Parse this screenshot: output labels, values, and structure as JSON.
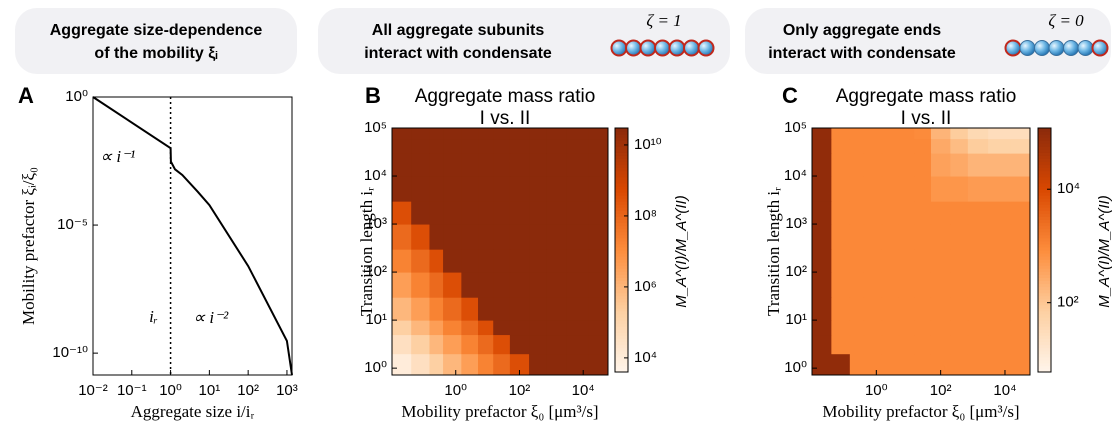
{
  "headers": [
    {
      "lines": [
        "Aggregate size-dependence",
        "of the mobility ξᵢ"
      ]
    },
    {
      "lines": [
        "All aggregate subunits",
        "interact with condensate"
      ],
      "formula": "ζ = 1"
    },
    {
      "lines": [
        "Only aggregate ends",
        "interact with condensate"
      ],
      "formula": "ζ = 0"
    }
  ],
  "chart_data": [
    {
      "type": "line",
      "label": "A",
      "xlabel": "Aggregate size i/iᵣ",
      "ylabel": "Mobility prefactor ξᵢ/ξ₀",
      "x": [
        0.01,
        1,
        1.02,
        1.3,
        2,
        5,
        10,
        100,
        1000,
        1350
      ],
      "y": [
        1,
        0.01,
        0.003,
        0.0015,
        0.0009,
        0.0002,
        6e-05,
        2.5e-07,
        3e-10,
        1.4e-11
      ],
      "color": "#000000",
      "log_x": true,
      "log_y": true,
      "xlim": [
        0.01,
        1350
      ],
      "ylim": [
        1.4e-11,
        1
      ],
      "xticks": [
        {
          "value": 0.01,
          "label": "10⁻²"
        },
        {
          "value": 0.1,
          "label": "10⁻¹"
        },
        {
          "value": 1,
          "label": "10⁰"
        },
        {
          "value": 10,
          "label": "10¹"
        },
        {
          "value": 100,
          "label": "10²"
        },
        {
          "value": 1000,
          "label": "10³"
        }
      ],
      "yticks": [
        {
          "value": 1,
          "label": "10⁰"
        },
        {
          "value": 1e-05,
          "label": "10⁻⁵"
        },
        {
          "value": 1e-10,
          "label": "10⁻¹⁰"
        }
      ],
      "vline": 1,
      "annotations": [
        "∝ i⁻¹",
        "∝ i⁻²",
        "iᵣ"
      ]
    },
    {
      "type": "heatmap",
      "label": "B",
      "title": "Aggregate mass ratio",
      "subtitle": "I vs. II",
      "xlabel": "Mobility prefactor ξ₀ [μm³/s]",
      "ylabel": "Transition length iᵣ",
      "x_bins": [
        0.01,
        0.04,
        0.15,
        0.4,
        1.5,
        5,
        15,
        50,
        200,
        700,
        3000,
        15000,
        60000
      ],
      "y_bins": [
        0.72,
        2,
        5,
        10,
        30,
        100,
        300,
        1000,
        3000,
        10000,
        30000,
        60000,
        100000
      ],
      "values": [
        [
          10000.0,
          40000.0,
          200000.0,
          900000.0,
          4000000.0,
          20000000.0,
          80000000.0,
          400000000.0,
          50000000000.0,
          50000000000.0,
          50000000000.0,
          50000000000.0
        ],
        [
          40000.0,
          200000.0,
          900000.0,
          4000000.0,
          20000000.0,
          80000000.0,
          400000000.0,
          50000000000.0,
          50000000000.0,
          50000000000.0,
          50000000000.0,
          50000000000.0
        ],
        [
          200000.0,
          900000.0,
          4000000.0,
          20000000.0,
          80000000.0,
          400000000.0,
          50000000000.0,
          50000000000.0,
          50000000000.0,
          50000000000.0,
          50000000000.0,
          50000000000.0
        ],
        [
          900000.0,
          4000000.0,
          20000000.0,
          80000000.0,
          400000000.0,
          50000000000.0,
          50000000000.0,
          50000000000.0,
          50000000000.0,
          50000000000.0,
          50000000000.0,
          50000000000.0
        ],
        [
          4000000.0,
          20000000.0,
          80000000.0,
          400000000.0,
          50000000000.0,
          50000000000.0,
          50000000000.0,
          50000000000.0,
          50000000000.0,
          50000000000.0,
          50000000000.0,
          50000000000.0
        ],
        [
          20000000.0,
          80000000.0,
          400000000.0,
          50000000000.0,
          50000000000.0,
          50000000000.0,
          50000000000.0,
          50000000000.0,
          50000000000.0,
          50000000000.0,
          50000000000.0,
          50000000000.0
        ],
        [
          80000000.0,
          400000000.0,
          50000000000.0,
          50000000000.0,
          50000000000.0,
          50000000000.0,
          50000000000.0,
          50000000000.0,
          50000000000.0,
          50000000000.0,
          50000000000.0,
          50000000000.0
        ],
        [
          400000000.0,
          50000000000.0,
          50000000000.0,
          50000000000.0,
          50000000000.0,
          50000000000.0,
          50000000000.0,
          50000000000.0,
          50000000000.0,
          50000000000.0,
          50000000000.0,
          50000000000.0
        ],
        [
          50000000000.0,
          50000000000.0,
          50000000000.0,
          50000000000.0,
          50000000000.0,
          50000000000.0,
          50000000000.0,
          50000000000.0,
          50000000000.0,
          50000000000.0,
          50000000000.0,
          50000000000.0
        ],
        [
          50000000000.0,
          50000000000.0,
          50000000000.0,
          50000000000.0,
          50000000000.0,
          50000000000.0,
          50000000000.0,
          50000000000.0,
          50000000000.0,
          50000000000.0,
          50000000000.0,
          50000000000.0
        ],
        [
          50000000000.0,
          50000000000.0,
          50000000000.0,
          50000000000.0,
          50000000000.0,
          50000000000.0,
          50000000000.0,
          50000000000.0,
          50000000000.0,
          50000000000.0,
          50000000000.0,
          50000000000.0
        ],
        [
          50000000000.0,
          50000000000.0,
          50000000000.0,
          50000000000.0,
          50000000000.0,
          50000000000.0,
          50000000000.0,
          50000000000.0,
          50000000000.0,
          50000000000.0,
          50000000000.0,
          50000000000.0
        ]
      ],
      "xlim": [
        0.01,
        60000
      ],
      "ylim": [
        0.72,
        100000
      ],
      "xticks": [
        {
          "value": 1,
          "label": "10⁰"
        },
        {
          "value": 100,
          "label": "10²"
        },
        {
          "value": 10000,
          "label": "10⁴"
        }
      ],
      "yticks": [
        {
          "value": 1,
          "label": "10⁰"
        },
        {
          "value": 10,
          "label": "10¹"
        },
        {
          "value": 100,
          "label": "10²"
        },
        {
          "value": 1000,
          "label": "10³"
        },
        {
          "value": 10000,
          "label": "10⁴"
        },
        {
          "value": 100000,
          "label": "10⁵"
        }
      ],
      "colorbar_label": "M_A^(I)/M_A^(II)",
      "clim": [
        4000,
        30000000000
      ],
      "cticks": [
        {
          "value": 10000,
          "label": "10⁴"
        },
        {
          "value": 1000000,
          "label": "10⁶"
        },
        {
          "value": 100000000,
          "label": "10⁸"
        },
        {
          "value": 10000000000,
          "label": "10¹⁰"
        }
      ],
      "colormap": [
        "#fff5eb",
        "#fdd0a2",
        "#fd8d3c",
        "#d94801",
        "#8b2a0b"
      ]
    },
    {
      "type": "heatmap",
      "label": "C",
      "title": "Aggregate mass ratio",
      "subtitle": "I vs. II",
      "xlabel": "Mobility prefactor ξ₀ [μm³/s]",
      "ylabel": "Transition length iᵣ",
      "x_bins": [
        0.01,
        0.04,
        0.15,
        0.4,
        1.5,
        5,
        15,
        50,
        200,
        700,
        3000,
        15000,
        60000
      ],
      "y_bins": [
        0.72,
        2,
        5,
        10,
        30,
        100,
        300,
        1000,
        3000,
        10000,
        30000,
        60000,
        100000
      ],
      "values": [
        [
          100000.0,
          100000.0,
          1000,
          1000,
          1000,
          1000,
          1000,
          1000,
          1000,
          1000,
          1000,
          1000
        ],
        [
          100000.0,
          1000,
          1000,
          1000,
          1000,
          1000,
          1000,
          1000,
          1000,
          1000,
          1000,
          1000
        ],
        [
          100000.0,
          1000,
          1000,
          1000,
          1000,
          1000,
          1000,
          1000,
          1000,
          1000,
          1000,
          1000
        ],
        [
          100000.0,
          1000,
          1000,
          1000,
          1000,
          1000,
          1000,
          1000,
          1000,
          1000,
          1000,
          1000
        ],
        [
          100000.0,
          1000,
          1000,
          1000,
          1000,
          1000,
          1000,
          1000,
          1000,
          1000,
          1000,
          1000
        ],
        [
          100000.0,
          1000,
          1000,
          1000,
          1000,
          1000,
          1000,
          1000,
          1000,
          1000,
          1000,
          1000
        ],
        [
          100000.0,
          1000,
          1000,
          1000,
          1000,
          1000,
          1000,
          1000,
          1000,
          1000,
          1000,
          1000
        ],
        [
          100000.0,
          1000,
          1000,
          1000,
          1000,
          1000,
          1000,
          1000,
          1000,
          1000,
          1000,
          1000
        ],
        [
          100000.0,
          1000,
          1000,
          1000,
          1000,
          1000,
          1000,
          600,
          600,
          500,
          500,
          500
        ],
        [
          100000.0,
          1000,
          1000,
          1000,
          1000,
          1000,
          1000,
          400,
          300,
          200,
          200,
          200
        ],
        [
          100000.0,
          1000,
          1000,
          1000,
          1000,
          1000,
          1000,
          300,
          150,
          80,
          60,
          60
        ],
        [
          100000.0,
          1000,
          1000,
          1000,
          1000,
          1000,
          900,
          200,
          80,
          40,
          30,
          30
        ]
      ],
      "xlim": [
        0.01,
        60000
      ],
      "ylim": [
        0.72,
        100000
      ],
      "xticks": [
        {
          "value": 1,
          "label": "10⁰"
        },
        {
          "value": 100,
          "label": "10²"
        },
        {
          "value": 10000,
          "label": "10⁴"
        }
      ],
      "yticks": [
        {
          "value": 1,
          "label": "10⁰"
        },
        {
          "value": 10,
          "label": "10¹"
        },
        {
          "value": 100,
          "label": "10²"
        },
        {
          "value": 1000,
          "label": "10³"
        },
        {
          "value": 10000,
          "label": "10⁴"
        },
        {
          "value": 100000,
          "label": "10⁵"
        }
      ],
      "colorbar_label": "M_A^(I)/M_A^(II)",
      "clim": [
        6,
        120000
      ],
      "cticks": [
        {
          "value": 100,
          "label": "10²"
        },
        {
          "value": 10000,
          "label": "10⁴"
        }
      ],
      "colormap": [
        "#fff5eb",
        "#fdd0a2",
        "#fd8d3c",
        "#d94801",
        "#8b2a0b"
      ]
    }
  ]
}
